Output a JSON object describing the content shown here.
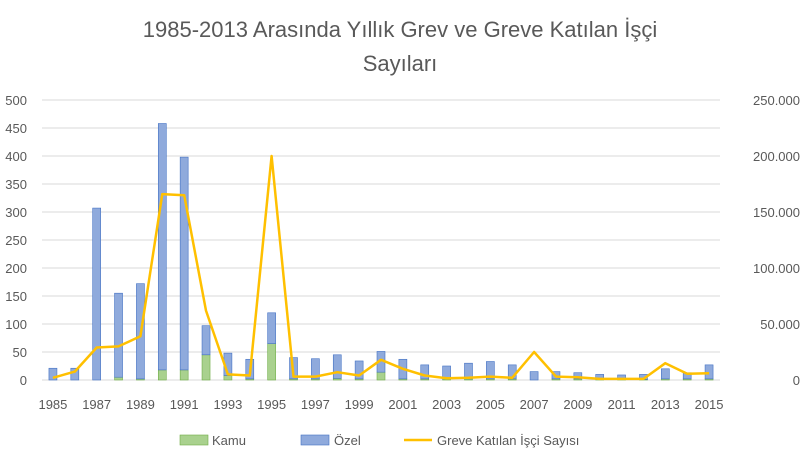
{
  "chart_data": {
    "type": "bar",
    "title_line1": "1985-2013 Arasında Yıllık Grev ve Greve Katılan İşçi",
    "title_line2": "Sayıları",
    "x_tick_labels": [
      "1985",
      "1987",
      "1989",
      "1991",
      "1993",
      "1995",
      "1997",
      "1999",
      "2001",
      "2003",
      "2005",
      "2007",
      "2009",
      "2011",
      "2013",
      "2015"
    ],
    "categories": [
      "1985",
      "1986",
      "1987",
      "1988",
      "1989",
      "1990",
      "1991",
      "1992",
      "1993",
      "1994",
      "1995",
      "1996",
      "1997",
      "1998",
      "1999",
      "2000",
      "2001",
      "2002",
      "2003",
      "2004",
      "2005",
      "2006",
      "2007",
      "2008",
      "2009",
      "2010",
      "2011",
      "2012",
      "2013",
      "2014",
      "2015"
    ],
    "left_axis": {
      "ylim": [
        0,
        500
      ],
      "ticks": [
        "0",
        "50",
        "100",
        "150",
        "200",
        "250",
        "300",
        "350",
        "400",
        "450",
        "500"
      ]
    },
    "right_axis": {
      "ylim": [
        0,
        250000
      ],
      "ticks": [
        "0",
        "50.000",
        "100.000",
        "150.000",
        "200.000",
        "250.000"
      ]
    },
    "series": [
      {
        "name": "Kamu",
        "kind": "stacked-bar",
        "axis": "left",
        "color": "#a9d18e",
        "values": [
          0,
          0,
          0,
          5,
          2,
          18,
          18,
          45,
          8,
          2,
          65,
          2,
          2,
          3,
          2,
          14,
          2,
          2,
          2,
          2,
          2,
          2,
          0,
          2,
          2,
          1,
          1,
          1,
          2,
          2,
          2
        ]
      },
      {
        "name": "Özel",
        "kind": "stacked-bar",
        "axis": "left",
        "color": "#8faadc",
        "values": [
          21,
          21,
          307,
          150,
          170,
          440,
          380,
          52,
          40,
          35,
          55,
          38,
          36,
          42,
          32,
          37,
          35,
          25,
          23,
          28,
          31,
          25,
          15,
          13,
          11,
          9,
          8,
          9,
          18,
          11,
          25
        ]
      },
      {
        "name": "Greve Katılan İşçi Sayısı",
        "kind": "line",
        "axis": "right",
        "color": "#ffc000",
        "values": [
          2000,
          7500,
          29000,
          30000,
          39000,
          166000,
          165000,
          62000,
          5000,
          4000,
          200000,
          3000,
          3000,
          7000,
          4000,
          18000,
          10000,
          4000,
          1500,
          2000,
          3000,
          2000,
          25000,
          3000,
          2500,
          1000,
          1000,
          1000,
          15000,
          5500,
          6000
        ]
      }
    ],
    "legend_position": "bottom",
    "grid": true
  }
}
